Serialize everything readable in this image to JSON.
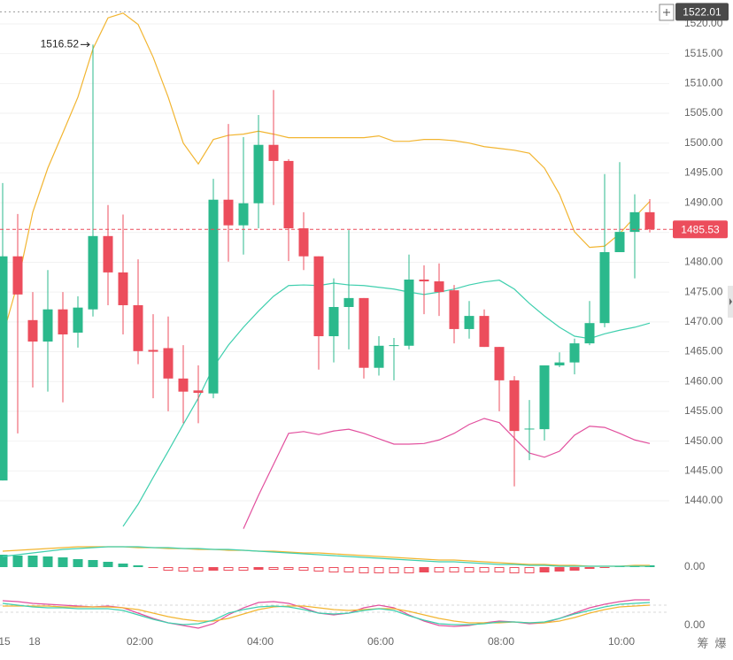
{
  "chart_data": [
    {
      "type": "candlestick",
      "categories": [
        "15",
        null,
        "18",
        null,
        null,
        null,
        null,
        null,
        null,
        "02:00",
        null,
        null,
        null,
        null,
        null,
        null,
        null,
        "04:00",
        null,
        null,
        null,
        null,
        null,
        null,
        null,
        "06:00",
        null,
        null,
        null,
        null,
        null,
        null,
        null,
        "08:00",
        null,
        null,
        null,
        null,
        null,
        null,
        null,
        "10:00",
        null,
        null
      ],
      "open": [
        1443.4,
        1481,
        1470.3,
        1466.7,
        1472.1,
        1468.2,
        1472.1,
        1484.4,
        1478.3,
        1472.8,
        1465.3,
        1465.6,
        1460.5,
        1458.5,
        1458,
        1490.5,
        1486.2,
        1489.9,
        1499.7,
        1497,
        1485.7,
        1481,
        1467.6,
        1472.5,
        1474,
        1462.3,
        1466,
        1466,
        1477.1,
        1476.8,
        1475.3,
        1468.8,
        1471,
        1465.8,
        1460.2,
        1452,
        1452,
        1462.7,
        1463.2,
        1466.4,
        1469.8,
        1481.7,
        1485.1,
        1488.4
      ],
      "high": [
        1493.3,
        1488.1,
        1475,
        1478.7,
        1475,
        1474.3,
        1516.52,
        1489.6,
        1488,
        1480.5,
        1471.3,
        1470.9,
        1466.1,
        1462.7,
        1494,
        1503.2,
        1501,
        1504.7,
        1508.9,
        1497.3,
        1488.4,
        1481,
        1477.3,
        1485.4,
        1474,
        1467.6,
        1467.3,
        1481.3,
        1479.5,
        1479.8,
        1476.2,
        1473.5,
        1472.1,
        1465.8,
        1460.9,
        1456.9,
        1462.7,
        1464.9,
        1467.2,
        1473.5,
        1494.8,
        1496.8,
        1491.4,
        1490.6
      ],
      "low": [
        1443.4,
        1451.3,
        1459,
        1458.3,
        1456.5,
        1465.7,
        1470.9,
        1472.8,
        1467.9,
        1462.9,
        1457.2,
        1455,
        1453,
        1453,
        1457.2,
        1480.1,
        1481.3,
        1485.7,
        1489.6,
        1480.2,
        1478.7,
        1462,
        1463.2,
        1465.4,
        1460.5,
        1461,
        1460.2,
        1465.4,
        1471.3,
        1471,
        1466.4,
        1467.2,
        1465.8,
        1455,
        1442.4,
        1446.8,
        1450.1,
        1462.4,
        1461.2,
        1466.1,
        1469.1,
        1481.7,
        1477.3,
        1485
      ],
      "close": [
        1481,
        1474.6,
        1466.7,
        1472.1,
        1467.9,
        1472.4,
        1484.4,
        1478.3,
        1472.8,
        1465.1,
        1465,
        1460.5,
        1458.3,
        1458.1,
        1490.5,
        1486.2,
        1489.9,
        1499.7,
        1497,
        1485.7,
        1481,
        1467.6,
        1472.5,
        1474,
        1462.3,
        1466,
        1466.1,
        1477.1,
        1476.8,
        1475,
        1468.8,
        1471,
        1465.8,
        1460.2,
        1451.7,
        1452.1,
        1462.7,
        1463.2,
        1466.4,
        1469.8,
        1481.7,
        1485.1,
        1488.4,
        1485.53
      ],
      "up_color": "#2bb98c",
      "down_color": "#ec4d5c",
      "bands": [
        {
          "color": "#f2b531",
          "values": [
            1467.6,
            1476.5,
            1488.4,
            1495.8,
            1501.7,
            1507.7,
            1515.8,
            1521,
            1521.8,
            1519.9,
            1514.4,
            1507.7,
            1500,
            1496.5,
            1500.6,
            1501.3,
            1501.5,
            1502,
            1501.5,
            1500.9,
            1500.9,
            1500.9,
            1500.9,
            1500.9,
            1500.9,
            1501.2,
            1500.3,
            1500.3,
            1500.6,
            1500.6,
            1500.4,
            1500,
            1499.4,
            1499.1,
            1498.8,
            1498.3,
            1495.8,
            1491.4,
            1485.1,
            1482.5,
            1482.7,
            1484.8,
            1487.6,
            1490.2
          ]
        },
        {
          "color": "#3fcfae",
          "values": [
            null,
            null,
            null,
            null,
            null,
            null,
            null,
            null,
            1435.7,
            1439.4,
            1443.9,
            1448.3,
            1452.8,
            1457.2,
            1462.4,
            1466.1,
            1469.1,
            1471.8,
            1474.3,
            1476.1,
            1476.2,
            1476.1,
            1476.5,
            1476.2,
            1476.1,
            1475.8,
            1475.5,
            1475,
            1474.6,
            1475,
            1475.5,
            1476.2,
            1476.7,
            1477,
            1475.5,
            1473.1,
            1471,
            1469.1,
            1467.6,
            1467.2,
            1468,
            1468.6,
            1469.1,
            1469.8
          ]
        },
        {
          "color": "#e2509e",
          "values": [
            null,
            null,
            null,
            null,
            null,
            null,
            null,
            null,
            null,
            null,
            null,
            null,
            null,
            null,
            null,
            null,
            1435.3,
            1440.9,
            1446.1,
            1451.3,
            1451.6,
            1451.1,
            1451.7,
            1452,
            1451.3,
            1450.4,
            1449.5,
            1449.5,
            1449.6,
            1450.2,
            1451.3,
            1452.8,
            1453.8,
            1453.1,
            1450.5,
            1448,
            1447.3,
            1448.3,
            1451,
            1452.5,
            1452.3,
            1451.3,
            1450.2,
            1449.6
          ]
        }
      ],
      "ylim": [
        1434.95,
        1524.0
      ],
      "yticks": [
        {
          "value": 1440,
          "label": "1440.00"
        },
        {
          "value": 1445,
          "label": "1445.00"
        },
        {
          "value": 1450,
          "label": "1450.00"
        },
        {
          "value": 1455,
          "label": "1455.00"
        },
        {
          "value": 1460,
          "label": "1460.00"
        },
        {
          "value": 1465,
          "label": "1465.00"
        },
        {
          "value": 1470,
          "label": "1470.00"
        },
        {
          "value": 1475,
          "label": "1475.00"
        },
        {
          "value": 1480,
          "label": "1480.00"
        },
        {
          "value": 1485,
          "label": "1485.00"
        },
        {
          "value": 1490,
          "label": "1490.00"
        },
        {
          "value": 1495,
          "label": "1495.00"
        },
        {
          "value": 1500,
          "label": "1500.00"
        },
        {
          "value": 1505,
          "label": "1505.00"
        },
        {
          "value": 1510,
          "label": "1510.00"
        },
        {
          "value": 1515,
          "label": "1515.00"
        },
        {
          "value": 1520,
          "label": "1520.00"
        }
      ],
      "grid": true,
      "last_price": 1485.53,
      "high_marker": 1516.52,
      "top_price": 1522.01
    },
    {
      "type": "macd",
      "values": [
        14,
        13,
        13,
        12,
        11,
        9,
        8,
        6,
        4,
        2,
        -1,
        -4,
        -5,
        -5,
        -4,
        -4,
        -4,
        -3,
        -3,
        -3,
        -4,
        -5,
        -6,
        -6,
        -7,
        -7,
        -7,
        -7,
        -6,
        -6,
        -6,
        -6,
        -6,
        -6,
        -7,
        -7,
        -6,
        -5,
        -4,
        -2,
        -1,
        1,
        2,
        2
      ],
      "up_color": "#2bb98c",
      "down_color": "#ec4d5c",
      "series": [
        {
          "color": "#f2b531",
          "values": [
            18,
            19,
            20,
            21,
            22,
            23,
            23,
            23,
            23,
            22,
            22,
            21,
            21,
            20,
            20,
            19,
            19,
            18,
            18,
            17,
            16,
            16,
            15,
            14,
            13,
            12,
            11,
            10,
            9,
            8,
            8,
            7,
            6,
            5,
            4,
            3,
            3,
            2,
            2,
            1,
            1,
            1,
            2,
            2
          ]
        },
        {
          "color": "#3fcfae",
          "values": [
            12,
            14,
            16,
            18,
            20,
            21,
            22,
            23,
            23,
            23,
            22,
            22,
            21,
            21,
            20,
            20,
            19,
            18,
            17,
            16,
            15,
            14,
            13,
            12,
            11,
            10,
            9,
            8,
            7,
            6,
            6,
            5,
            4,
            3,
            3,
            2,
            2,
            1,
            1,
            1,
            1,
            1,
            1,
            1
          ]
        }
      ],
      "ylim": [
        -20,
        35
      ],
      "yticks": [
        {
          "value": 0,
          "label": "0.00"
        }
      ]
    },
    {
      "type": "line",
      "series": [
        {
          "color": "#e2509e",
          "values": [
            28,
            27,
            25,
            24,
            23,
            22,
            21,
            22,
            20,
            14,
            8,
            3,
            0,
            -3,
            2,
            12,
            20,
            26,
            27,
            25,
            20,
            14,
            12,
            14,
            20,
            23,
            20,
            12,
            5,
            0,
            -1,
            0,
            3,
            5,
            4,
            2,
            3,
            8,
            14,
            20,
            24,
            27,
            29,
            29
          ]
        },
        {
          "color": "#f2b531",
          "values": [
            22,
            22,
            22,
            22,
            21,
            21,
            21,
            21,
            20,
            18,
            14,
            10,
            7,
            5,
            5,
            8,
            13,
            18,
            21,
            22,
            22,
            20,
            18,
            17,
            18,
            19,
            19,
            16,
            12,
            8,
            5,
            3,
            3,
            3,
            4,
            3,
            3,
            5,
            9,
            14,
            18,
            21,
            22,
            23
          ]
        },
        {
          "color": "#3fcfae",
          "values": [
            25,
            23,
            21,
            20,
            20,
            19,
            19,
            19,
            17,
            12,
            7,
            3,
            1,
            2,
            6,
            14,
            18,
            21,
            22,
            21,
            18,
            14,
            13,
            14,
            17,
            19,
            17,
            11,
            6,
            2,
            1,
            1,
            2,
            4,
            4,
            3,
            4,
            8,
            13,
            17,
            21,
            24,
            25,
            26
          ]
        }
      ],
      "ylim": [
        -10,
        35
      ],
      "yticks": [
        {
          "value": 0,
          "label": "0.00"
        }
      ]
    }
  ],
  "footer_buttons": [
    "筹",
    "爆"
  ]
}
